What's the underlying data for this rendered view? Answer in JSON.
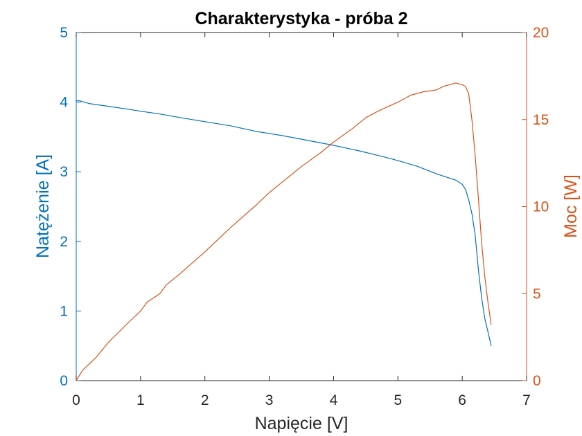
{
  "chart_data": {
    "type": "line",
    "title": "Charakterystyka - próba 2",
    "xlabel": "Napięcie [V]",
    "ylabel_left": "Natężenie [A]",
    "ylabel_right": "Moc [W]",
    "xlim": [
      0,
      7
    ],
    "ylim_left": [
      0,
      5
    ],
    "ylim_right": [
      0,
      20
    ],
    "xticks": [
      "0",
      "1",
      "2",
      "3",
      "4",
      "5",
      "6",
      "7"
    ],
    "yticks_left": [
      "0",
      "1",
      "2",
      "3",
      "4",
      "5"
    ],
    "yticks_right": [
      "0",
      "5",
      "10",
      "15",
      "20"
    ],
    "grid": false,
    "colors": {
      "current": "#0072BD",
      "power": "#D95319",
      "axis": "#262626"
    },
    "series": [
      {
        "axis": "left",
        "color": "#0072BD",
        "x": [
          0,
          0.05,
          0.2,
          0.5,
          0.8,
          1.0,
          1.3,
          1.6,
          2.0,
          2.4,
          2.8,
          3.2,
          3.6,
          4.0,
          4.4,
          4.8,
          5.0,
          5.3,
          5.6,
          5.9,
          6.0,
          6.05,
          6.1,
          6.15,
          6.2,
          6.25,
          6.3,
          6.35,
          6.4,
          6.45
        ],
        "y": [
          4.02,
          4.02,
          3.98,
          3.94,
          3.9,
          3.87,
          3.83,
          3.78,
          3.72,
          3.66,
          3.58,
          3.52,
          3.45,
          3.38,
          3.3,
          3.21,
          3.16,
          3.08,
          2.97,
          2.88,
          2.82,
          2.75,
          2.6,
          2.4,
          2.1,
          1.6,
          1.2,
          0.9,
          0.7,
          0.5
        ]
      },
      {
        "axis": "right",
        "color": "#D95319",
        "x": [
          0,
          0.1,
          0.3,
          0.5,
          0.8,
          1.0,
          1.1,
          1.3,
          1.4,
          1.6,
          2.0,
          2.4,
          2.8,
          3.0,
          3.2,
          3.5,
          3.8,
          4.0,
          4.3,
          4.5,
          4.7,
          5.0,
          5.2,
          5.4,
          5.6,
          5.7,
          5.8,
          5.9,
          6.0,
          6.05,
          6.1,
          6.15,
          6.2,
          6.25,
          6.3,
          6.35,
          6.4,
          6.45
        ],
        "y": [
          0,
          0.6,
          1.3,
          2.2,
          3.3,
          4.0,
          4.5,
          5.0,
          5.5,
          6.1,
          7.4,
          8.8,
          10.1,
          10.8,
          11.4,
          12.3,
          13.1,
          13.7,
          14.5,
          15.1,
          15.5,
          16.0,
          16.4,
          16.6,
          16.7,
          16.9,
          17.0,
          17.1,
          17.0,
          16.9,
          16.5,
          15.0,
          13.0,
          10.5,
          8.0,
          6.0,
          4.5,
          3.2
        ]
      }
    ]
  }
}
